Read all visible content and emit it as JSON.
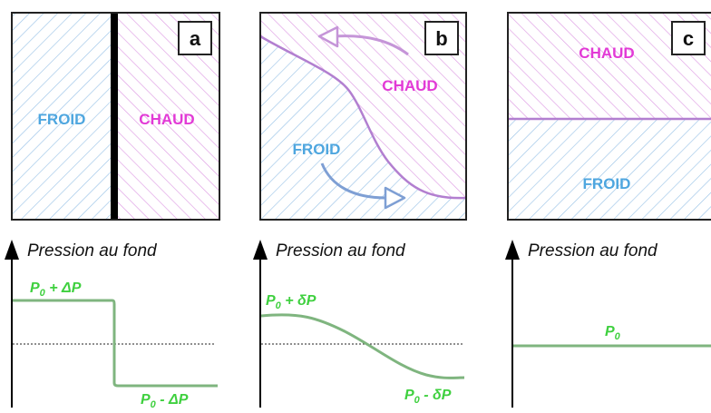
{
  "colors": {
    "cold_hatch": "#9cc4e8",
    "cold_text": "#4ea6df",
    "hot_hatch": "#de9ce4",
    "hot_text": "#e23ad6",
    "interface": "#b27fd0",
    "arrow_purple": "#c595d8",
    "arrow_blue": "#7e9fd4",
    "curve_green": "#7fb57f",
    "label_green": "#3fd03f",
    "axis": "#000000",
    "frame": "#222222"
  },
  "panels": [
    {
      "letter": "a",
      "cold_label": "FROID",
      "hot_label": "CHAUD",
      "y_axis_title": "Pression au fond",
      "pressure_high": {
        "base": "P",
        "sub": "0",
        "suffix": " + ΔP"
      },
      "pressure_low": {
        "base": "P",
        "sub": "0",
        "suffix": " - ΔP"
      }
    },
    {
      "letter": "b",
      "cold_label": "FROID",
      "hot_label": "CHAUD",
      "y_axis_title": "Pression au fond",
      "pressure_high": {
        "base": "P",
        "sub": "0",
        "suffix": " + δP"
      },
      "pressure_low": {
        "base": "P",
        "sub": "0",
        "suffix": " - δP"
      }
    },
    {
      "letter": "c",
      "cold_label": "FROID",
      "hot_label": "CHAUD",
      "y_axis_title": "Pression au fond",
      "pressure_level": {
        "base": "P",
        "sub": "0"
      }
    }
  ]
}
